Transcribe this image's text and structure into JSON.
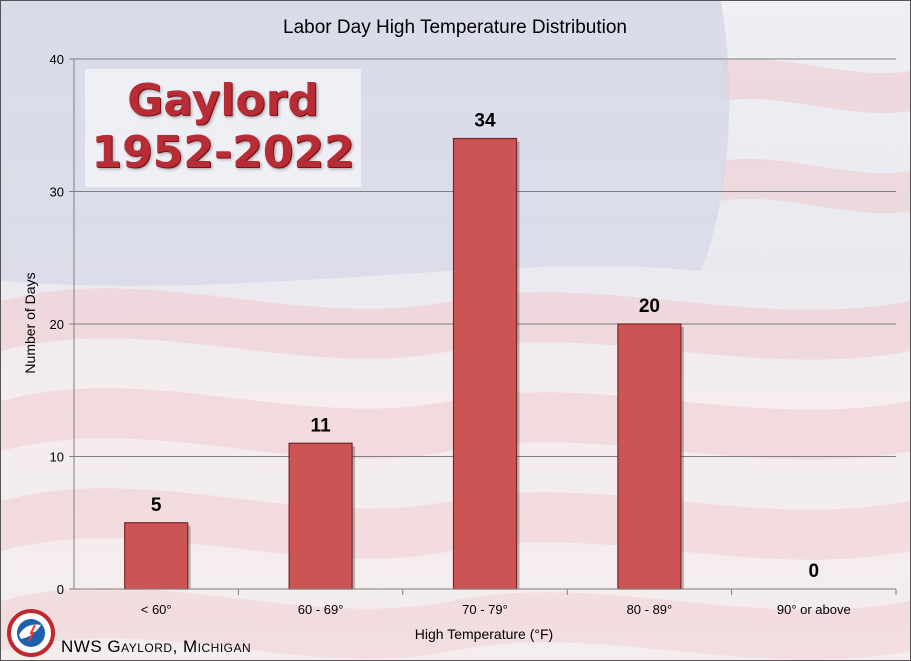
{
  "colors": {
    "bar": "#cd5454",
    "bar_edge": "#7a2626",
    "grid": "#808080"
  },
  "overlay": {
    "line1": "Gaylord",
    "line2": "1952-2022"
  },
  "footer": {
    "credit": "NWS Gaylord, Michigan"
  },
  "logo": {
    "icon": "nws-logo-icon"
  },
  "chart_data": {
    "type": "bar",
    "title": "Labor Day High Temperature Distribution",
    "xlabel": "High Temperature (°F)",
    "ylabel": "Number of Days",
    "categories": [
      "< 60°",
      "60 - 69°",
      "70 - 79°",
      "80 - 89°",
      "90° or above"
    ],
    "values": [
      5,
      11,
      34,
      20,
      0
    ],
    "ylim": [
      0,
      40
    ],
    "yticks": [
      0,
      10,
      20,
      30,
      40
    ],
    "grid": true,
    "legend": "none"
  }
}
